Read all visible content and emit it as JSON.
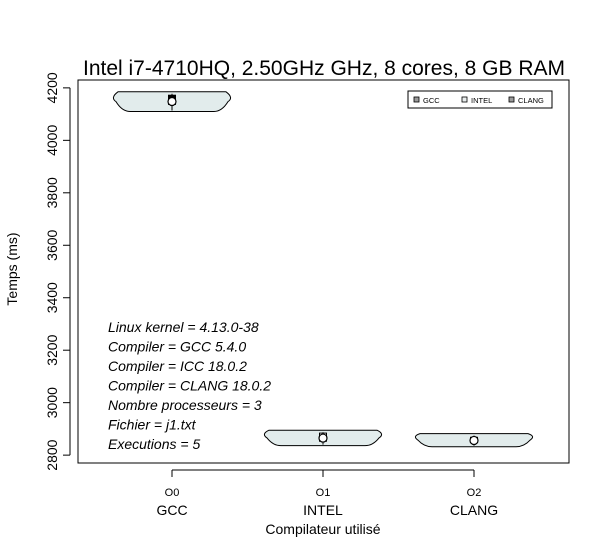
{
  "chart_data": {
    "type": "violin",
    "title": "Intel i7-4710HQ, 2.50GHz GHz, 8 cores, 8 GB RAM",
    "xlabel": "Compilateur utilisé",
    "ylabel": "Temps (ms)",
    "ylim": [
      2770,
      4230
    ],
    "yticks": [
      2800,
      3000,
      3200,
      3400,
      3600,
      3800,
      4000,
      4200
    ],
    "groups": [
      {
        "opt": "O0",
        "compiler": "GCC",
        "min": 4110,
        "max": 4185,
        "q1": 4137,
        "median": 4148,
        "q3": 4172,
        "color": "#000000"
      },
      {
        "opt": "O1",
        "compiler": "INTEL",
        "min": 2836,
        "max": 2895,
        "q1": 2853,
        "median": 2865,
        "q3": 2884,
        "color": "#ffffff"
      },
      {
        "opt": "O2",
        "compiler": "CLANG",
        "min": 2832,
        "max": 2882,
        "q1": 2848,
        "median": 2856,
        "q3": 2868,
        "color": "#ffffff"
      }
    ],
    "legend": {
      "position": "top-right",
      "entries": [
        {
          "label": "GCC",
          "color": "#9a9a9a"
        },
        {
          "label": "INTEL",
          "color": "#e8eded"
        },
        {
          "label": "CLANG",
          "color": "#9a9a9a"
        }
      ]
    },
    "annotations": [
      "Linux kernel = 4.13.0-38",
      "Compiler = GCC 5.4.0",
      "Compiler = ICC 18.0.2",
      "Compiler = CLANG 18.0.2",
      "Nombre processeurs = 3",
      "Fichier = j1.txt",
      "Executions = 5"
    ],
    "violin_fill": "#e2ecec",
    "grid": false
  }
}
